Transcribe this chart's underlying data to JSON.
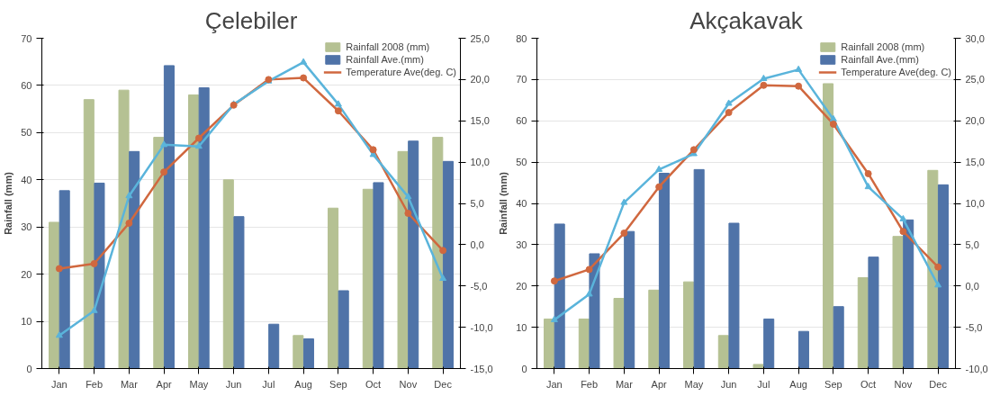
{
  "chart_data": [
    {
      "type": "bar",
      "title": "Çelebiler",
      "ylabel": "Rainfall (mm)",
      "categories": [
        "Jan",
        "Feb",
        "Mar",
        "Apr",
        "May",
        "Jun",
        "Jul",
        "Aug",
        "Sep",
        "Oct",
        "Nov",
        "Dec"
      ],
      "series": [
        {
          "name": "Rainfall 2008 (mm)",
          "color": "#b5c193",
          "values": [
            31,
            57,
            59,
            49,
            58,
            40,
            null,
            7,
            34,
            38,
            46,
            49
          ]
        },
        {
          "name": "Rainfall Ave.(mm)",
          "color": "#4f73a8",
          "values": [
            37.7,
            39.3,
            46,
            64.2,
            59.5,
            32.2,
            9.4,
            6.3,
            16.5,
            39.4,
            48.2,
            43.9
          ]
        },
        {
          "name": "Temperature Ave(deg. C)",
          "type": "line",
          "axis": "y2",
          "marker": "circle",
          "color": "#d0683f",
          "values": [
            -2.9,
            -2.3,
            2.6,
            8.8,
            12.9,
            16.9,
            20.0,
            20.2,
            16.2,
            11.5,
            3.8,
            -0.7
          ]
        },
        {
          "type": "line",
          "axis": "y2",
          "marker": "triangle",
          "color": "#5ab4db",
          "values": [
            -11.0,
            -8.0,
            5.9,
            12.1,
            11.9,
            17.0,
            19.8,
            22.1,
            17.0,
            10.9,
            5.8,
            -4.1
          ]
        }
      ],
      "ylim": [
        0,
        70
      ],
      "yticks": [
        0,
        10,
        20,
        30,
        40,
        50,
        60,
        70
      ],
      "y2lim": [
        -15,
        25
      ],
      "y2ticks": [
        {
          "value": -15,
          "label": "-15,0"
        },
        {
          "value": -10,
          "label": "-10,0"
        },
        {
          "value": -5,
          "label": "-5,0"
        },
        {
          "value": 0,
          "label": "0,0"
        },
        {
          "value": 5,
          "label": "5,0"
        },
        {
          "value": 10,
          "label": "10,0"
        },
        {
          "value": 15,
          "label": "15,0"
        },
        {
          "value": 20,
          "label": "20,0"
        },
        {
          "value": 25,
          "label": "25,0"
        }
      ],
      "grid": "y",
      "legend": "top right"
    },
    {
      "type": "bar",
      "title": "Akçakavak",
      "ylabel": "Rainfall (mm)",
      "categories": [
        "Jan",
        "Feb",
        "Mar",
        "Apr",
        "May",
        "Jun",
        "Jul",
        "Aug",
        "Sep",
        "Oct",
        "Nov",
        "Dec"
      ],
      "series": [
        {
          "name": "Rainfall 2008 (mm)",
          "color": "#b5c193",
          "values": [
            12,
            12,
            17,
            19,
            21,
            8,
            1,
            null,
            69,
            22,
            32,
            48
          ]
        },
        {
          "name": "Rainfall Ave.(mm)",
          "color": "#4f73a8",
          "values": [
            35,
            27.8,
            33.2,
            47.3,
            48.2,
            35.2,
            12,
            9,
            15,
            27,
            36,
            44.5
          ]
        },
        {
          "name": "Temperature Ave(deg. C)",
          "type": "line",
          "axis": "y2",
          "marker": "circle",
          "color": "#d0683f",
          "values": [
            0.6,
            2.0,
            6.4,
            12.0,
            16.5,
            21.0,
            24.3,
            24.2,
            19.6,
            13.6,
            6.6,
            2.3
          ]
        },
        {
          "type": "line",
          "axis": "y2",
          "marker": "triangle",
          "color": "#5ab4db",
          "values": [
            -4.1,
            -1.0,
            10.1,
            14.1,
            16.0,
            22.1,
            25.1,
            26.2,
            20.2,
            12.0,
            8.1,
            0.1
          ]
        }
      ],
      "ylim": [
        0,
        80
      ],
      "yticks": [
        0,
        10,
        20,
        30,
        40,
        50,
        60,
        70,
        80
      ],
      "y2lim": [
        -10,
        30
      ],
      "y2ticks": [
        {
          "value": -10,
          "label": "-10,0"
        },
        {
          "value": -5,
          "label": "-5,0"
        },
        {
          "value": 0,
          "label": "0,0"
        },
        {
          "value": 5,
          "label": "5,0"
        },
        {
          "value": 10,
          "label": "10,0"
        },
        {
          "value": 15,
          "label": "15,0"
        },
        {
          "value": 20,
          "label": "20,0"
        },
        {
          "value": 25,
          "label": "25,0"
        },
        {
          "value": 30,
          "label": "30,0"
        }
      ],
      "grid": "y",
      "legend": "top right"
    }
  ]
}
